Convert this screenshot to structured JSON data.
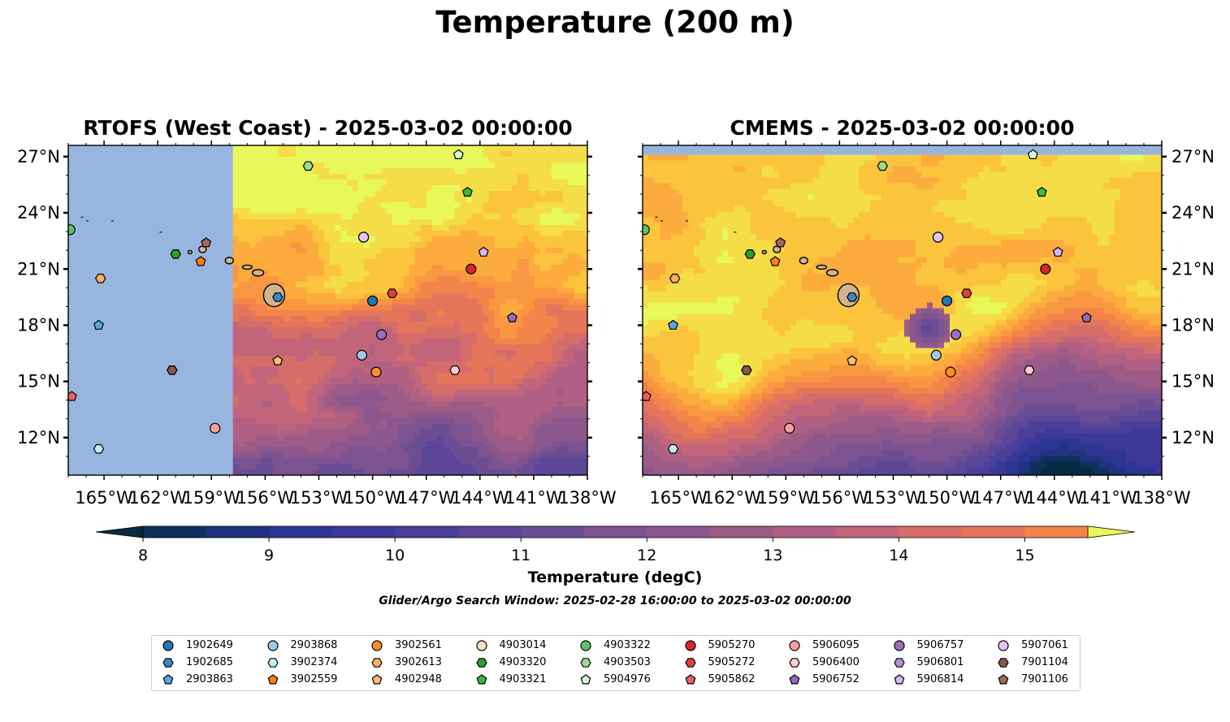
{
  "figure": {
    "suptitle": "Temperature (200 m)",
    "colorbar_label": "Temperature (degC)",
    "search_window": "Glider/Argo Search Window: 2025-02-28 16:00:00 to 2025-03-02 00:00:00",
    "colors": {
      "land": "#d2b48c",
      "nodata": "#97b5df",
      "warm": "#e8f85a"
    }
  },
  "chart_data": [
    {
      "type": "heatmap",
      "title": "RTOFS (West Coast) - 2025-03-02 00:00:00",
      "xlim": [
        -167,
        -138
      ],
      "ylim": [
        10,
        27.6
      ],
      "xticks": [
        "165°W",
        "162°W",
        "159°W",
        "156°W",
        "153°W",
        "150°W",
        "147°W",
        "144°W",
        "141°W",
        "138°W"
      ],
      "yticks": [
        "27°N",
        "24°N",
        "21°N",
        "18°N",
        "15°N",
        "12°N"
      ],
      "ytick_side": "left",
      "model_domain_west_edge_lon": -157.8,
      "grid": false
    },
    {
      "type": "heatmap",
      "title": "CMEMS - 2025-03-02 00:00:00",
      "xlim": [
        -167,
        -138
      ],
      "ylim": [
        10,
        27.6
      ],
      "xticks": [
        "165°W",
        "162°W",
        "159°W",
        "156°W",
        "153°W",
        "150°W",
        "147°W",
        "144°W",
        "141°W",
        "138°W"
      ],
      "yticks": [
        "27°N",
        "24°N",
        "21°N",
        "18°N",
        "15°N",
        "12°N"
      ],
      "ytick_side": "right",
      "model_domain_north_edge_lat": 27.1,
      "grid": false
    }
  ],
  "colorbar": {
    "min": 8,
    "max": 15.5,
    "step": 0.5,
    "ticks": [
      "8",
      "9",
      "10",
      "11",
      "12",
      "13",
      "14",
      "15"
    ],
    "extend": "both",
    "colors": [
      "#082a40",
      "#11305f",
      "#203380",
      "#2d3594",
      "#3b3899",
      "#4a3f99",
      "#5c4697",
      "#6b4d93",
      "#7c5290",
      "#8c578d",
      "#9d5b88",
      "#b06082",
      "#c2657a",
      "#d56d6a",
      "#e6765a",
      "#f3844a",
      "#f99641",
      "#fcab3d",
      "#fbc43d",
      "#f5dd48",
      "#e8f85a"
    ]
  },
  "floats": [
    {
      "id": "1902649",
      "lon": -150.0,
      "lat": 19.3,
      "marker": "circle",
      "color": "#1f77b4"
    },
    {
      "id": "1902685",
      "lon": -155.3,
      "lat": 19.5,
      "marker": "hexagon",
      "color": "#3a87c4"
    },
    {
      "id": "2903863",
      "lon": -165.3,
      "lat": 18.0,
      "marker": "pentagon",
      "color": "#5aa5e0"
    },
    {
      "id": "2903868",
      "lon": -150.6,
      "lat": 16.4,
      "marker": "circle",
      "color": "#9ecae9"
    },
    {
      "id": "3902374",
      "lon": -165.3,
      "lat": 11.4,
      "marker": "hexagon",
      "color": "#c6ecf8"
    },
    {
      "id": "3902559",
      "lon": -159.6,
      "lat": 21.4,
      "marker": "pentagon",
      "color": "#ff7f0e"
    },
    {
      "id": "3902561",
      "lon": -149.8,
      "lat": 15.5,
      "marker": "circle",
      "color": "#ff8c2a"
    },
    {
      "id": "3902613",
      "lon": -165.2,
      "lat": 20.5,
      "marker": "hexagon",
      "color": "#ffad62"
    },
    {
      "id": "4902948",
      "lon": -155.3,
      "lat": 16.1,
      "marker": "pentagon",
      "color": "#ffbb78"
    },
    {
      "id": "4903014",
      "lon": -150.5,
      "lat": 22.7,
      "marker": "circle",
      "color": "#ffe0c4"
    },
    {
      "id": "4903320",
      "lon": -161.0,
      "lat": 21.8,
      "marker": "hexagon",
      "color": "#2ca02c"
    },
    {
      "id": "4903321",
      "lon": -144.7,
      "lat": 25.1,
      "marker": "pentagon",
      "color": "#3db83d"
    },
    {
      "id": "4903322",
      "lon": -166.9,
      "lat": 23.1,
      "marker": "circle",
      "color": "#62c462"
    },
    {
      "id": "4903503",
      "lon": -153.6,
      "lat": 26.5,
      "marker": "hexagon",
      "color": "#98df8a"
    },
    {
      "id": "5904976",
      "lon": -145.2,
      "lat": 27.1,
      "marker": "pentagon",
      "color": "#d4fbd2"
    },
    {
      "id": "5905270",
      "lon": -144.5,
      "lat": 21.0,
      "marker": "circle",
      "color": "#d62728"
    },
    {
      "id": "5905272",
      "lon": -148.9,
      "lat": 19.7,
      "marker": "hexagon",
      "color": "#e04040"
    },
    {
      "id": "5905862",
      "lon": -166.8,
      "lat": 14.2,
      "marker": "pentagon",
      "color": "#f06060"
    },
    {
      "id": "5906095",
      "lon": -158.8,
      "lat": 12.5,
      "marker": "circle",
      "color": "#f4a09e"
    },
    {
      "id": "5906400",
      "lon": -145.4,
      "lat": 15.6,
      "marker": "hexagon",
      "color": "#fbcdcd"
    },
    {
      "id": "5906752",
      "lon": -142.2,
      "lat": 18.4,
      "marker": "pentagon",
      "color": "#9467bd"
    },
    {
      "id": "5906757",
      "lon": -149.5,
      "lat": 17.5,
      "marker": "circle",
      "color": "#9a6fc0"
    },
    {
      "id": "5906801",
      "lon": -161.2,
      "lat": 15.6,
      "marker": "hexagon",
      "color": "#b58fd9"
    },
    {
      "id": "5906814",
      "lon": -143.8,
      "lat": 21.9,
      "marker": "pentagon",
      "color": "#d4b8f2"
    },
    {
      "id": "5907061",
      "lon": -150.5,
      "lat": 22.7,
      "marker": "circle",
      "color": "#e3c5fb"
    },
    {
      "id": "7901104",
      "lon": -161.2,
      "lat": 15.6,
      "marker": "hexagon",
      "color": "#8c564b"
    },
    {
      "id": "7901106",
      "lon": -159.3,
      "lat": 22.4,
      "marker": "pentagon",
      "color": "#9e6b5e"
    }
  ]
}
